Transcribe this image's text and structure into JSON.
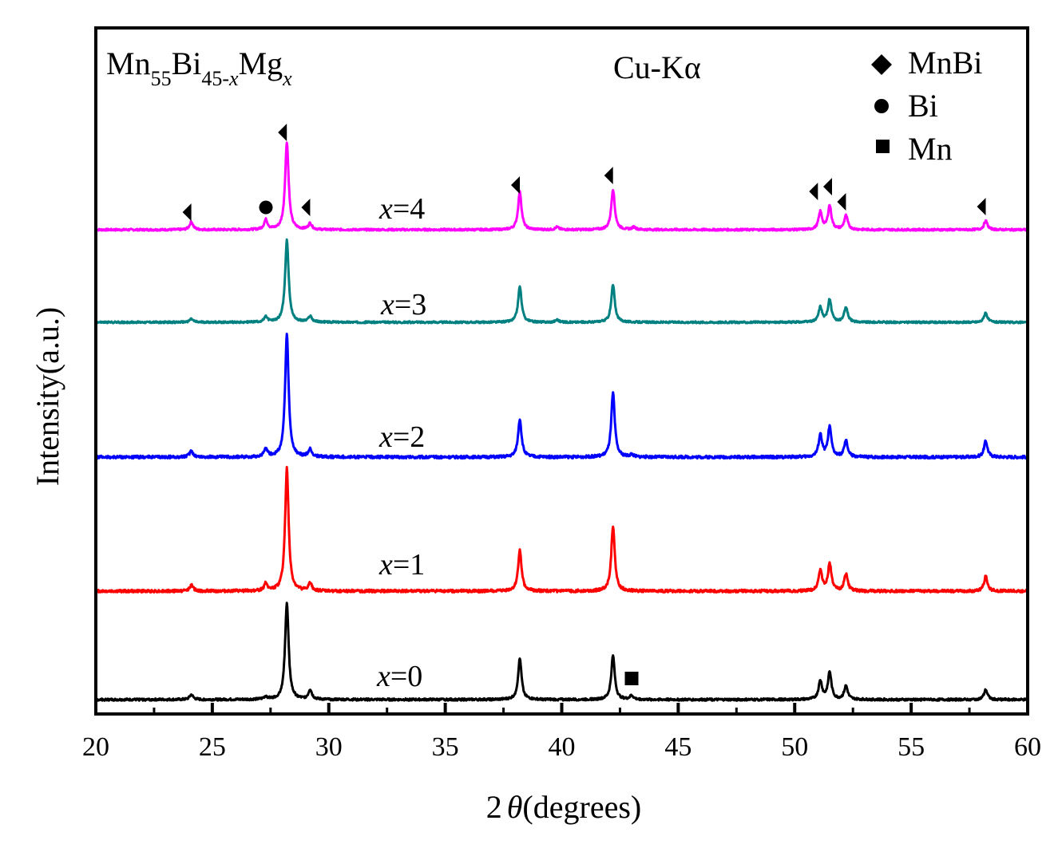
{
  "chart_data": {
    "type": "line",
    "xlabel_prefix": "2",
    "xlabel_theta": "θ",
    "xlabel_suffix": "(degrees)",
    "ylabel": "Intensity(a.u.)",
    "xlim": [
      20,
      60
    ],
    "x_ticks": [
      20,
      25,
      30,
      35,
      40,
      45,
      50,
      55,
      60
    ],
    "y_ticks_shown": false,
    "grid": false,
    "composition": {
      "base": "Mn",
      "sub1": "55",
      "el2": "Bi",
      "sub2": "45-",
      "sub2_var": "x",
      "el3": "Mg",
      "sub3_var": "x"
    },
    "radiation": "Cu-Kα",
    "legend": {
      "position": "top-right",
      "entries": [
        {
          "marker": "diamond",
          "label": "MnBi"
        },
        {
          "marker": "circle",
          "label": "Bi"
        },
        {
          "marker": "square",
          "label": "Mn"
        }
      ]
    },
    "peaks_2theta": {
      "MnBi": [
        24.1,
        28.2,
        29.2,
        38.2,
        42.2,
        51.1,
        51.5,
        52.2,
        58.2
      ],
      "Bi": [
        27.3
      ],
      "Mn": [
        43.0
      ]
    },
    "series": [
      {
        "name_var": "x",
        "name_value": "=4",
        "color": "#ff00ff",
        "peaks": [
          [
            24.1,
            0.09
          ],
          [
            27.3,
            0.11
          ],
          [
            28.2,
            1.0
          ],
          [
            29.2,
            0.07
          ],
          [
            38.2,
            0.43
          ],
          [
            39.8,
            0.03
          ],
          [
            42.2,
            0.46
          ],
          [
            43.1,
            0.03
          ],
          [
            51.1,
            0.2
          ],
          [
            51.5,
            0.27
          ],
          [
            52.2,
            0.16
          ],
          [
            58.2,
            0.1
          ]
        ]
      },
      {
        "name_var": "x",
        "name_value": "=3",
        "color": "#008080",
        "peaks": [
          [
            24.1,
            0.04
          ],
          [
            27.3,
            0.06
          ],
          [
            28.2,
            1.0
          ],
          [
            29.2,
            0.07
          ],
          [
            38.2,
            0.43
          ],
          [
            39.8,
            0.03
          ],
          [
            42.2,
            0.45
          ],
          [
            51.1,
            0.18
          ],
          [
            51.5,
            0.27
          ],
          [
            52.2,
            0.18
          ],
          [
            58.2,
            0.11
          ]
        ]
      },
      {
        "name_var": "x",
        "name_value": "=2",
        "color": "#0000ff",
        "peaks": [
          [
            24.1,
            0.05
          ],
          [
            27.3,
            0.07
          ],
          [
            28.2,
            1.0
          ],
          [
            29.2,
            0.06
          ],
          [
            38.2,
            0.31
          ],
          [
            42.2,
            0.52
          ],
          [
            43.0,
            0.02
          ],
          [
            51.1,
            0.18
          ],
          [
            51.5,
            0.24
          ],
          [
            52.2,
            0.13
          ],
          [
            58.2,
            0.13
          ]
        ]
      },
      {
        "name_var": "x",
        "name_value": "=1",
        "color": "#ff0000",
        "peaks": [
          [
            24.1,
            0.05
          ],
          [
            27.3,
            0.06
          ],
          [
            28.2,
            1.0
          ],
          [
            29.2,
            0.06
          ],
          [
            38.2,
            0.33
          ],
          [
            42.2,
            0.53
          ],
          [
            51.1,
            0.17
          ],
          [
            51.5,
            0.22
          ],
          [
            52.2,
            0.14
          ],
          [
            58.2,
            0.12
          ]
        ]
      },
      {
        "name_var": "x",
        "name_value": "=0",
        "color": "#000000",
        "peaks": [
          [
            24.1,
            0.05
          ],
          [
            27.3,
            0.03
          ],
          [
            28.2,
            1.0
          ],
          [
            29.2,
            0.1
          ],
          [
            38.2,
            0.42
          ],
          [
            42.2,
            0.45
          ],
          [
            43.0,
            0.04
          ],
          [
            51.1,
            0.19
          ],
          [
            51.5,
            0.28
          ],
          [
            52.2,
            0.14
          ],
          [
            58.2,
            0.1
          ]
        ]
      }
    ]
  }
}
